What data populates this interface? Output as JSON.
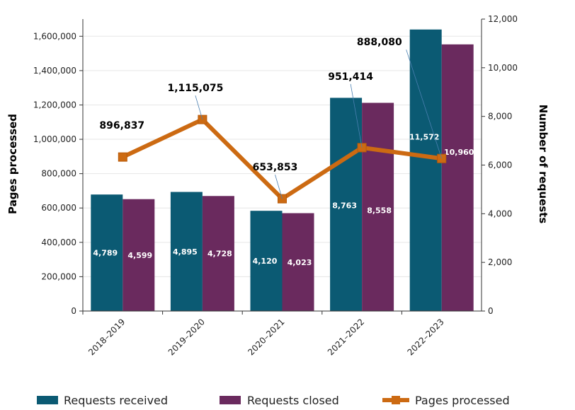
{
  "chart_data": {
    "type": "bar",
    "categories": [
      "2018–2019",
      "2019–2020",
      "2020–2021",
      "2021–2022",
      "2022–2023"
    ],
    "series": [
      {
        "name": "Requests received",
        "type": "bar",
        "axis": "right",
        "color": "#0b5a73",
        "values": [
          4789,
          4895,
          4120,
          8763,
          11572
        ],
        "labels": [
          "4,789",
          "4,895",
          "4,120",
          "8,763",
          "11,572"
        ]
      },
      {
        "name": "Requests closed",
        "type": "bar",
        "axis": "right",
        "color": "#6a2a5e",
        "values": [
          4599,
          4728,
          4023,
          8558,
          10960
        ],
        "labels": [
          "4,599",
          "4,728",
          "4,023",
          "8,558",
          "10,960"
        ]
      },
      {
        "name": "Pages processed",
        "type": "line",
        "axis": "left",
        "color": "#cc6a12",
        "values": [
          896837,
          1115075,
          653853,
          951414,
          888080
        ],
        "labels": [
          "896,837",
          "1,115,075",
          "653,853",
          "951,414",
          "888,080"
        ]
      }
    ],
    "ylabel_left": "Pages processed",
    "ylabel_right": "Number of requests",
    "ylim_left": [
      0,
      1700000
    ],
    "ylim_right": [
      0,
      12000
    ],
    "yticks_left": [
      "0",
      "200,000",
      "400,000",
      "600,000",
      "800,000",
      "1,000,000",
      "1,200,000",
      "1,400,000",
      "1,600,000"
    ],
    "yticks_right": [
      "0",
      "2,000",
      "4,000",
      "6,000",
      "8,000",
      "10,000",
      "12,000"
    ],
    "legend": {
      "position": "bottom",
      "items": [
        "Requests received",
        "Requests closed",
        "Pages processed"
      ]
    },
    "grid": true
  }
}
